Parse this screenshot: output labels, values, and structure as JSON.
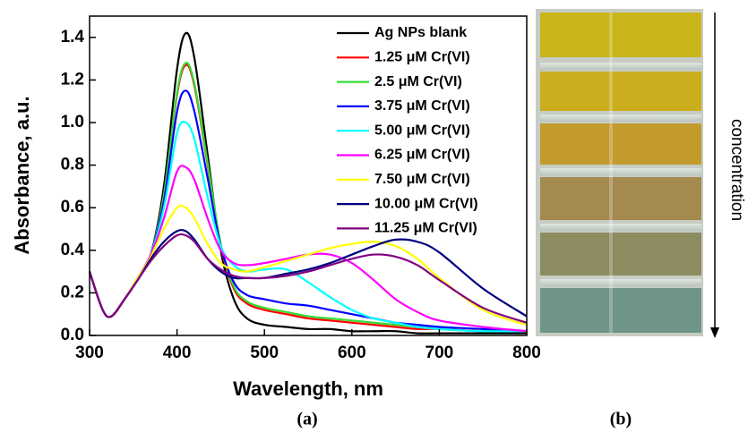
{
  "chart_data": {
    "type": "line",
    "xlabel": "Wavelength, nm",
    "ylabel": "Absorbance, a.u.",
    "xlim": [
      300,
      800
    ],
    "xticks": [
      300,
      400,
      500,
      600,
      700,
      800
    ],
    "ylim": [
      0,
      1.5
    ],
    "yticks": [
      {
        "value": 0,
        "label": "0.0"
      },
      0.2,
      0.4,
      0.6,
      0.8,
      {
        "value": 1,
        "label": "1.0"
      },
      1.2,
      1.4
    ],
    "legend": "upper right",
    "x": [
      300,
      315,
      325,
      340,
      355,
      370,
      385,
      400,
      410,
      420,
      435,
      450,
      465,
      480,
      500,
      525,
      550,
      575,
      600,
      625,
      650,
      675,
      700,
      750,
      800
    ],
    "series": [
      {
        "name": "Ag NPs blank",
        "color": "#000000",
        "values": [
          0.3,
          0.12,
          0.09,
          0.17,
          0.27,
          0.38,
          0.7,
          1.25,
          1.42,
          1.3,
          0.85,
          0.4,
          0.17,
          0.08,
          0.05,
          0.04,
          0.03,
          0.03,
          0.02,
          0.02,
          0.02,
          0.01,
          0.01,
          0.01,
          0.01
        ]
      },
      {
        "name": "1.25 μM Cr(VI)",
        "color": "#ff0000",
        "values": [
          0.3,
          0.12,
          0.09,
          0.17,
          0.27,
          0.38,
          0.66,
          1.13,
          1.27,
          1.17,
          0.8,
          0.42,
          0.22,
          0.15,
          0.12,
          0.1,
          0.08,
          0.07,
          0.06,
          0.05,
          0.04,
          0.03,
          0.03,
          0.02,
          0.02
        ]
      },
      {
        "name": "2.5 μM Cr(VI)",
        "color": "#33dd33",
        "values": [
          0.3,
          0.12,
          0.09,
          0.17,
          0.27,
          0.38,
          0.66,
          1.14,
          1.28,
          1.18,
          0.81,
          0.43,
          0.23,
          0.16,
          0.13,
          0.11,
          0.09,
          0.08,
          0.07,
          0.06,
          0.05,
          0.04,
          0.03,
          0.02,
          0.02
        ]
      },
      {
        "name": "3.75 μM Cr(VI)",
        "color": "#0000ff",
        "values": [
          0.3,
          0.12,
          0.09,
          0.17,
          0.27,
          0.38,
          0.63,
          1.05,
          1.15,
          1.05,
          0.74,
          0.42,
          0.25,
          0.19,
          0.17,
          0.15,
          0.14,
          0.12,
          0.1,
          0.08,
          0.06,
          0.05,
          0.04,
          0.03,
          0.02
        ]
      },
      {
        "name": "5.00 μM Cr(VI)",
        "color": "#00ffff",
        "values": [
          0.3,
          0.12,
          0.09,
          0.17,
          0.27,
          0.38,
          0.6,
          0.95,
          1.0,
          0.92,
          0.65,
          0.42,
          0.33,
          0.3,
          0.31,
          0.31,
          0.25,
          0.18,
          0.12,
          0.08,
          0.06,
          0.04,
          0.03,
          0.02,
          0.02
        ]
      },
      {
        "name": "6.25 μM Cr(VI)",
        "color": "#ff00ff",
        "values": [
          0.3,
          0.12,
          0.09,
          0.17,
          0.27,
          0.38,
          0.55,
          0.77,
          0.79,
          0.73,
          0.55,
          0.4,
          0.34,
          0.33,
          0.34,
          0.36,
          0.38,
          0.38,
          0.34,
          0.26,
          0.17,
          0.11,
          0.07,
          0.04,
          0.02
        ]
      },
      {
        "name": "7.50 μM Cr(VI)",
        "color": "#ffff00",
        "values": [
          0.3,
          0.12,
          0.09,
          0.17,
          0.27,
          0.37,
          0.5,
          0.6,
          0.6,
          0.55,
          0.43,
          0.34,
          0.31,
          0.3,
          0.32,
          0.35,
          0.38,
          0.41,
          0.43,
          0.44,
          0.42,
          0.36,
          0.27,
          0.12,
          0.05
        ]
      },
      {
        "name": "10.00 μM Cr(VI)",
        "color": "#000080",
        "values": [
          0.3,
          0.12,
          0.09,
          0.17,
          0.26,
          0.36,
          0.44,
          0.49,
          0.49,
          0.45,
          0.36,
          0.3,
          0.27,
          0.27,
          0.27,
          0.29,
          0.31,
          0.34,
          0.38,
          0.42,
          0.45,
          0.44,
          0.39,
          0.22,
          0.09
        ]
      },
      {
        "name": "11.25 μM Cr(VI)",
        "color": "#800080",
        "values": [
          0.3,
          0.12,
          0.09,
          0.17,
          0.26,
          0.35,
          0.42,
          0.47,
          0.47,
          0.44,
          0.36,
          0.31,
          0.28,
          0.27,
          0.27,
          0.28,
          0.3,
          0.33,
          0.36,
          0.38,
          0.37,
          0.33,
          0.26,
          0.13,
          0.06
        ]
      }
    ]
  },
  "panel_labels": [
    "(a)",
    "(b)"
  ],
  "photo_label": "concentration"
}
